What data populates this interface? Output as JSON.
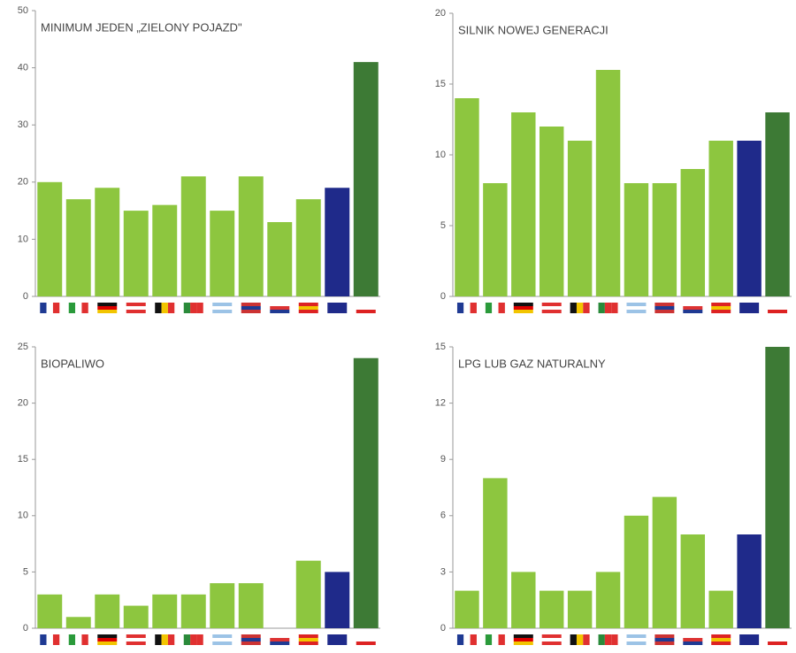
{
  "chart_data": [
    {
      "type": "bar",
      "title": "MINIMUM JEDEN „ZIELONY POJAZD\"",
      "categories": [
        null,
        null,
        null,
        null,
        null,
        null,
        null,
        null,
        null,
        null,
        null,
        null
      ],
      "values": [
        20,
        17,
        19,
        15,
        16,
        21,
        15,
        21,
        13,
        17,
        19,
        41
      ],
      "colors": [
        "#8dc63f",
        "#8dc63f",
        "#8dc63f",
        "#8dc63f",
        "#8dc63f",
        "#8dc63f",
        "#8dc63f",
        "#8dc63f",
        "#8dc63f",
        "#8dc63f",
        "#1f2a8a",
        "#3d7a35"
      ],
      "ylim": [
        0,
        50
      ],
      "yticks": [
        0,
        10,
        20,
        30,
        40,
        50
      ]
    },
    {
      "type": "bar",
      "title": "SILNIK NOWEJ GENERACJI",
      "categories": [
        null,
        null,
        null,
        null,
        null,
        null,
        null,
        null,
        null,
        null,
        null,
        null
      ],
      "values": [
        14,
        8,
        13,
        12,
        11,
        16,
        8,
        8,
        9,
        11,
        11,
        13
      ],
      "colors": [
        "#8dc63f",
        "#8dc63f",
        "#8dc63f",
        "#8dc63f",
        "#8dc63f",
        "#8dc63f",
        "#8dc63f",
        "#8dc63f",
        "#8dc63f",
        "#8dc63f",
        "#1f2a8a",
        "#3d7a35"
      ],
      "ylim": [
        0,
        20
      ],
      "yticks": [
        0,
        5,
        10,
        15,
        20
      ]
    },
    {
      "type": "bar",
      "title": "BIOPALIWO",
      "categories": [
        null,
        null,
        null,
        null,
        null,
        null,
        null,
        null,
        null,
        null,
        null,
        null
      ],
      "values": [
        3,
        1,
        3,
        2,
        3,
        3,
        4,
        4,
        0,
        6,
        5,
        24
      ],
      "colors": [
        "#8dc63f",
        "#8dc63f",
        "#8dc63f",
        "#8dc63f",
        "#8dc63f",
        "#8dc63f",
        "#8dc63f",
        "#8dc63f",
        "#8dc63f",
        "#8dc63f",
        "#1f2a8a",
        "#3d7a35"
      ],
      "ylim": [
        0,
        25
      ],
      "yticks": [
        0,
        5,
        10,
        15,
        20,
        25
      ]
    },
    {
      "type": "bar",
      "title": "LPG LUB GAZ NATURALNY",
      "categories": [
        null,
        null,
        null,
        null,
        null,
        null,
        null,
        null,
        null,
        null,
        null,
        null
      ],
      "values": [
        2,
        8,
        3,
        2,
        2,
        3,
        6,
        7,
        5,
        2,
        5,
        15
      ],
      "colors": [
        "#8dc63f",
        "#8dc63f",
        "#8dc63f",
        "#8dc63f",
        "#8dc63f",
        "#8dc63f",
        "#8dc63f",
        "#8dc63f",
        "#8dc63f",
        "#8dc63f",
        "#1f2a8a",
        "#3d7a35"
      ],
      "ylim": [
        0,
        15
      ],
      "yticks": [
        0,
        3,
        6,
        9,
        12,
        15
      ]
    }
  ]
}
